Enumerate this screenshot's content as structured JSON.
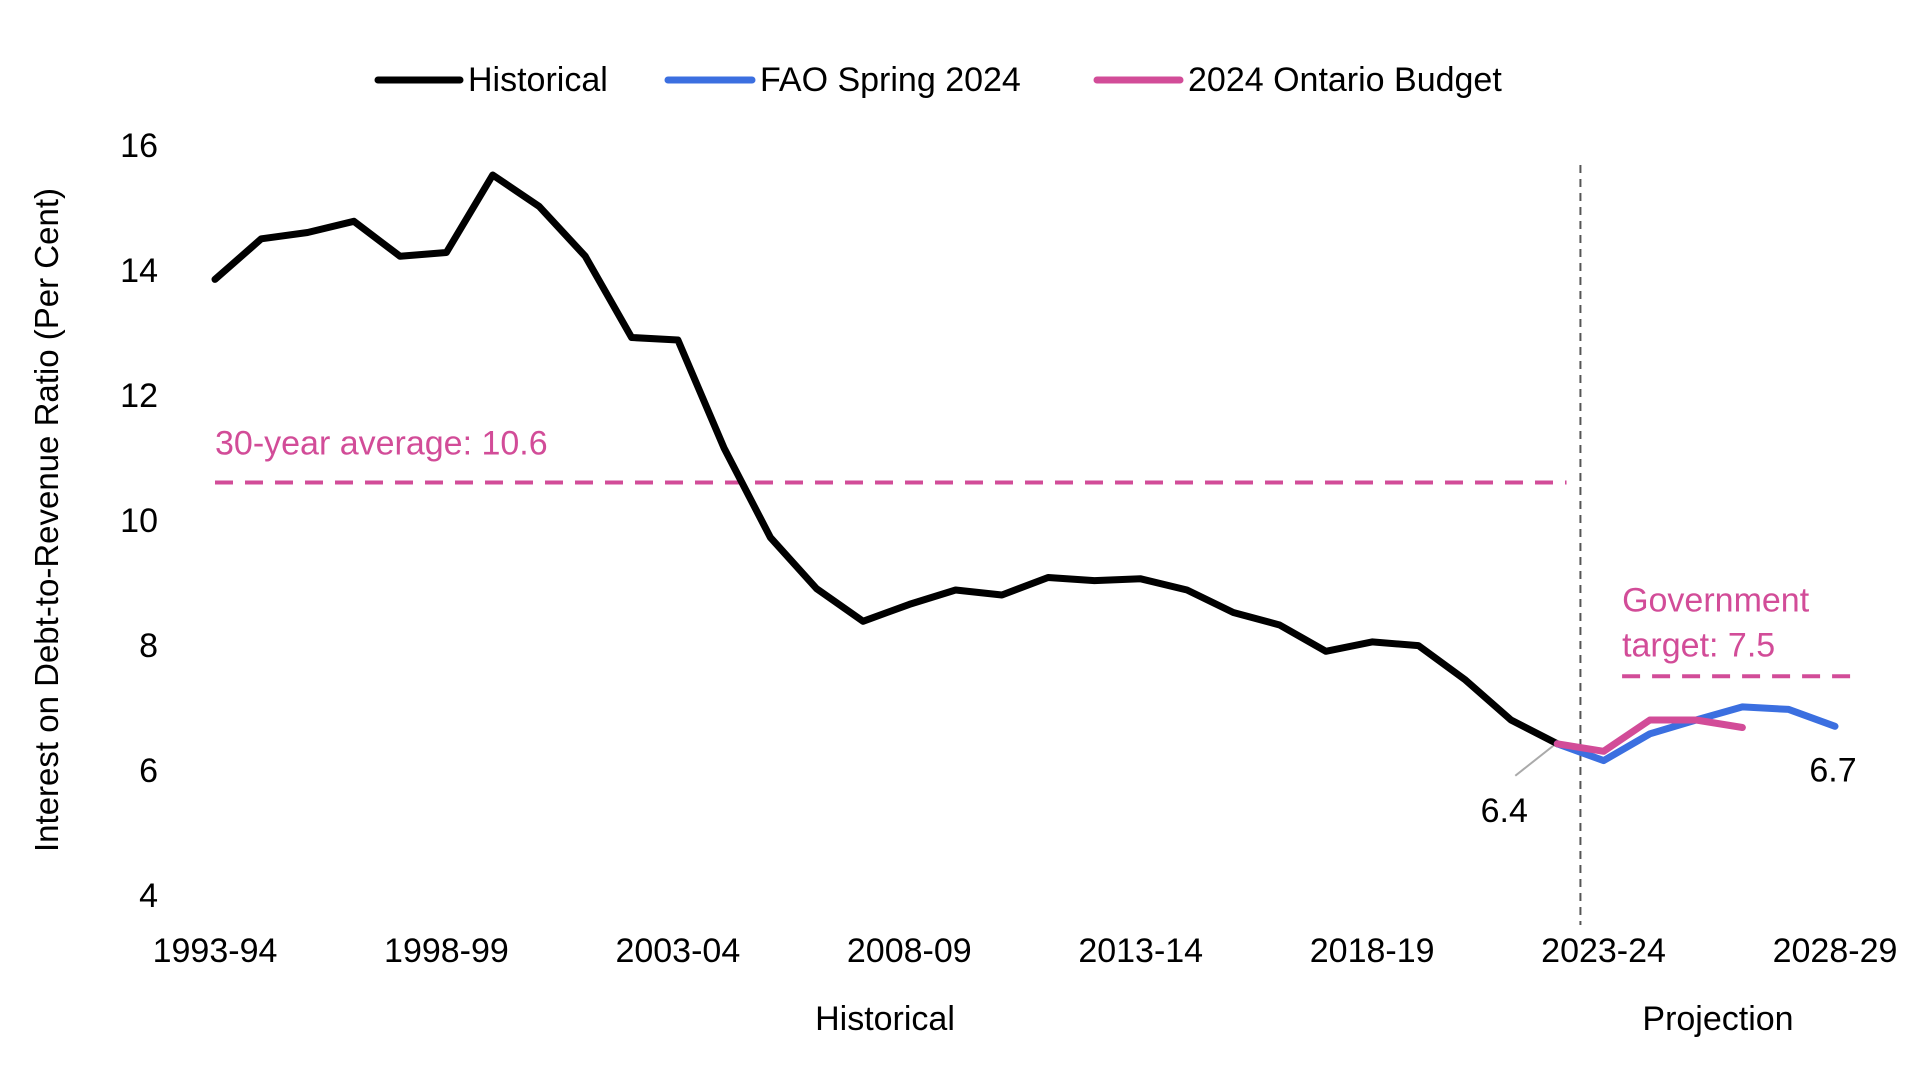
{
  "chart_data": {
    "type": "line",
    "ylabel": "Interest on Debt-to-Revenue Ratio (Per Cent)",
    "ylim": [
      4,
      16
    ],
    "y_ticks": [
      4,
      6,
      8,
      10,
      12,
      14,
      16
    ],
    "x_tick_labels": [
      "1993-94",
      "1998-99",
      "2003-04",
      "2008-09",
      "2013-14",
      "2018-19",
      "2023-24",
      "2028-29"
    ],
    "x_tick_index": [
      0,
      5,
      10,
      15,
      20,
      25,
      30,
      35
    ],
    "periods": [
      "1993-94",
      "1994-95",
      "1995-96",
      "1996-97",
      "1997-98",
      "1998-99",
      "1999-00",
      "2000-01",
      "2001-02",
      "2002-03",
      "2003-04",
      "2004-05",
      "2005-06",
      "2006-07",
      "2007-08",
      "2008-09",
      "2009-10",
      "2010-11",
      "2011-12",
      "2012-13",
      "2013-14",
      "2014-15",
      "2015-16",
      "2016-17",
      "2017-18",
      "2018-19",
      "2019-20",
      "2020-21",
      "2021-22",
      "2022-23",
      "2023-24",
      "2024-25",
      "2025-26",
      "2026-27",
      "2027-28",
      "2028-29"
    ],
    "legend": {
      "position": "top-center"
    },
    "grid": false,
    "series": [
      {
        "name": "Historical",
        "color": "#000000",
        "start_index": 0,
        "values": [
          13.85,
          14.5,
          14.6,
          14.78,
          14.22,
          14.28,
          15.52,
          15.02,
          14.22,
          12.92,
          12.88,
          11.15,
          9.72,
          8.9,
          8.38,
          8.65,
          8.88,
          8.8,
          9.08,
          9.03,
          9.06,
          8.88,
          8.52,
          8.32,
          7.9,
          8.05,
          7.99,
          7.45,
          6.8,
          6.42
        ]
      },
      {
        "name": "FAO Spring 2024",
        "color": "#3b6fe0",
        "start_index": 29,
        "values": [
          6.42,
          6.15,
          6.58,
          6.8,
          7.01,
          6.97,
          6.7
        ]
      },
      {
        "name": "2024 Ontario Budget",
        "color": "#d24c98",
        "start_index": 29,
        "values": [
          6.42,
          6.3,
          6.8,
          6.8,
          6.68
        ]
      }
    ],
    "reference_lines": [
      {
        "label": "30-year average: 10.6",
        "value": 10.6,
        "start_index": 0,
        "end_index": 29.2,
        "color": "#d24c98"
      },
      {
        "label_line1": "Government",
        "label_line2": "target: 7.5",
        "value": 7.5,
        "start_index": 30.4,
        "end_index": 35.4,
        "color": "#d24c98"
      }
    ],
    "annotations": [
      {
        "text": "6.4",
        "index": 29,
        "value": 6.42
      },
      {
        "text": "6.7",
        "index": 35,
        "value": 6.7
      }
    ],
    "divider_index": 29.5,
    "section_labels": [
      "Historical",
      "Projection"
    ]
  }
}
